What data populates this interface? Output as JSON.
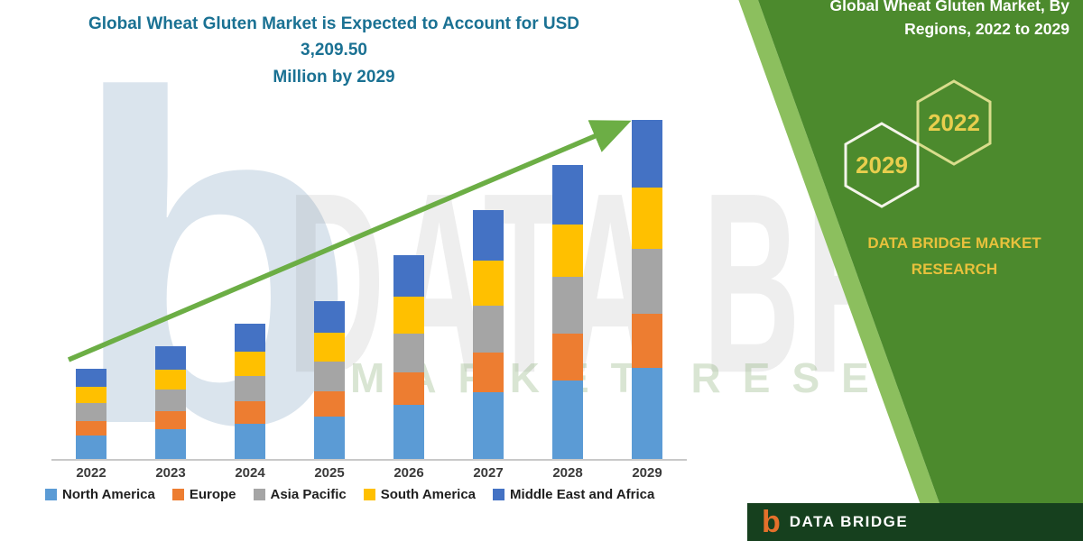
{
  "title": {
    "line1": "Global Wheat Gluten Market is Expected to Account for USD 3,209.50",
    "line2": "Million by 2029"
  },
  "side_panel": {
    "heading": "Global Wheat Gluten Market, By Regions, 2022 to 2029",
    "hexagon_years": [
      "2029",
      "2022"
    ],
    "brand_line1": "DATA BRIDGE MARKET",
    "brand_line2": "RESEARCH"
  },
  "footer": {
    "logo_letter": "b",
    "brand": "DATA BRIDGE"
  },
  "watermark": {
    "letter": "b",
    "text1": "DATA BRIDGE",
    "text2": "MARKET RESEARCH"
  },
  "colors": {
    "title_teal": "#1A7193",
    "panel_green": "#4C8A2D",
    "panel_green_light": "#8CBF5E",
    "footer_green": "#16401E",
    "accent_yellow": "#E8CE4D",
    "arrow_green": "#6CAE45"
  },
  "chart_data": {
    "type": "bar",
    "stacked": true,
    "title": "Global Wheat Gluten Market is Expected to Account for USD 3,209.50 Million by 2029",
    "unit": "USD Million",
    "total_2029": 3209.5,
    "categories": [
      "2022",
      "2023",
      "2024",
      "2025",
      "2026",
      "2027",
      "2028",
      "2029"
    ],
    "series": [
      {
        "name": "North America",
        "color": "#5B9BD5",
        "values": [
          230,
          290,
          345,
          405,
          520,
          635,
          750,
          865
        ]
      },
      {
        "name": "Europe",
        "color": "#ED7D31",
        "values": [
          140,
          170,
          205,
          240,
          310,
          380,
          445,
          515
        ]
      },
      {
        "name": "Asia Pacific",
        "color": "#A5A5A5",
        "values": [
          165,
          205,
          245,
          285,
          365,
          445,
          530,
          610
        ]
      },
      {
        "name": "South America",
        "color": "#FFC000",
        "values": [
          155,
          190,
          230,
          270,
          350,
          425,
          500,
          580
        ]
      },
      {
        "name": "Middle East and Africa",
        "color": "#4472C4",
        "values": [
          170,
          215,
          260,
          300,
          385,
          470,
          560,
          639.5
        ]
      }
    ],
    "totals": [
      860,
      1070,
      1285,
      1500,
      1930,
      2355,
      2785,
      3209.5
    ],
    "xlabel": "",
    "ylabel": "",
    "y_axis_visible": false,
    "grid": false,
    "legend_position": "bottom",
    "trend_arrow": true
  }
}
